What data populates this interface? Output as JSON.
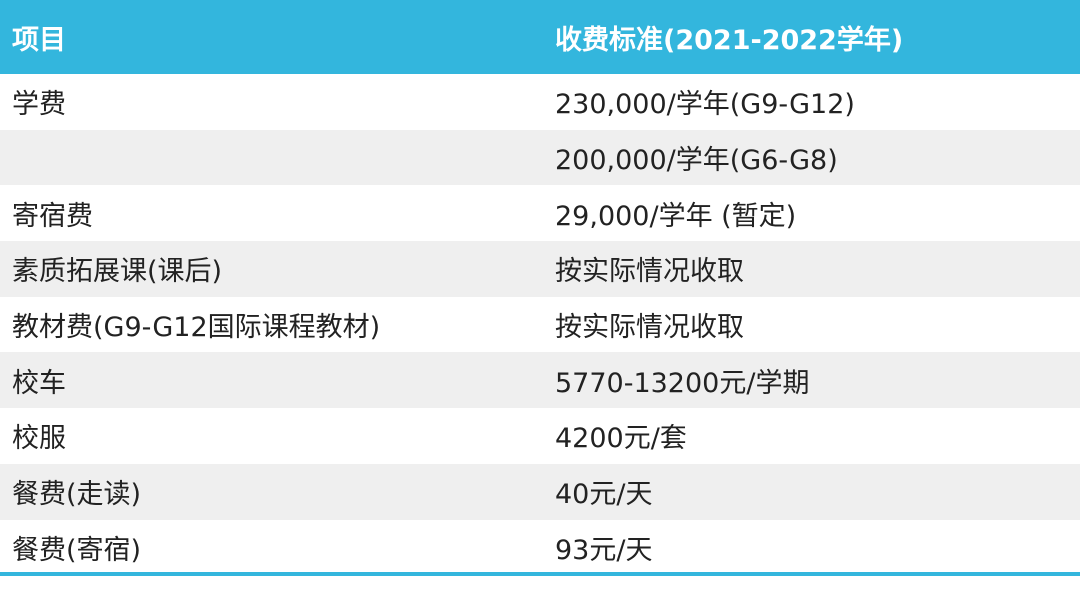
{
  "table": {
    "headers": {
      "item": "项目",
      "fee": "收费标准(2021-2022学年)"
    },
    "rows": [
      {
        "item": "学费",
        "fee": "230,000/学年(G9-G12)"
      },
      {
        "item": "",
        "fee": "200,000/学年(G6-G8)"
      },
      {
        "item": "寄宿费",
        "fee": "29,000/学年 (暂定)"
      },
      {
        "item": "素质拓展课(课后)",
        "fee": "按实际情况收取"
      },
      {
        "item": "教材费(G9-G12国际课程教材)",
        "fee": "按实际情况收取"
      },
      {
        "item": "校车",
        "fee": "5770-13200元/学期"
      },
      {
        "item": "校服",
        "fee": "4200元/套"
      },
      {
        "item": "餐费(走读)",
        "fee": "40元/天"
      },
      {
        "item": "餐费(寄宿)",
        "fee": "93元/天"
      }
    ]
  },
  "colors": {
    "header_bg": "#33b6dd",
    "header_text": "#ffffff",
    "stripe": "#efefef",
    "text": "#222222"
  }
}
